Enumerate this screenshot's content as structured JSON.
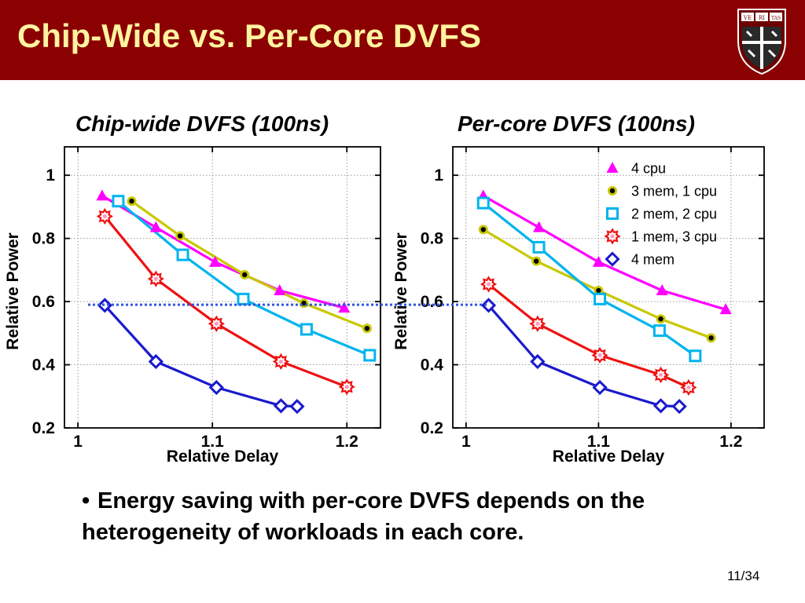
{
  "slide": {
    "title": "Chip-Wide vs. Per-Core DVFS",
    "bullet": "Energy saving with per-core DVFS depends on the heterogeneity of workloads in each core.",
    "page_number": "11/34",
    "logo_letters": [
      "VE",
      "RI",
      "TAS"
    ]
  },
  "colors": {
    "title_bar": "#8b0000",
    "title_text": "#fff3a0",
    "4 cpu": "#ff00ff",
    "3 mem, 1 cpu": "#c8c800",
    "2 mem, 2 cpu": "#00b4ee",
    "1 mem, 3 cpu": "#ee1111",
    "4 mem": "#1a1acc",
    "reference_line": "#3355dd"
  },
  "chart_data": [
    {
      "type": "line",
      "title": "Chip-wide DVFS (100ns)",
      "xlabel": "Relative Delay",
      "ylabel": "Relative Power",
      "xlim": [
        0.99,
        1.225
      ],
      "ylim": [
        0.2,
        1.09
      ],
      "xticks": [
        "1",
        "1.1",
        "1.2"
      ],
      "yticks": [
        "0.2",
        "0.4",
        "0.6",
        "0.8",
        "1"
      ],
      "grid": true,
      "series": [
        {
          "name": "4 cpu",
          "marker": "triangle",
          "x": [
            1.018,
            1.058,
            1.102,
            1.15,
            1.198
          ],
          "y": [
            0.935,
            0.835,
            0.725,
            0.635,
            0.58
          ]
        },
        {
          "name": "3 mem, 1 cpu",
          "marker": "dot",
          "x": [
            1.04,
            1.076,
            1.124,
            1.168,
            1.215
          ],
          "y": [
            0.918,
            0.808,
            0.685,
            0.595,
            0.515
          ]
        },
        {
          "name": "2 mem, 2 cpu",
          "marker": "square",
          "x": [
            1.03,
            1.078,
            1.123,
            1.17,
            1.217
          ],
          "y": [
            0.918,
            0.748,
            0.608,
            0.512,
            0.43
          ]
        },
        {
          "name": "1 mem, 3 cpu",
          "marker": "star",
          "x": [
            1.02,
            1.058,
            1.103,
            1.151,
            1.2
          ],
          "y": [
            0.87,
            0.672,
            0.53,
            0.41,
            0.33
          ]
        },
        {
          "name": "4 mem",
          "marker": "diamond",
          "x": [
            1.02,
            1.058,
            1.103,
            1.151,
            1.163
          ],
          "y": [
            0.588,
            0.41,
            0.328,
            0.27,
            0.268
          ]
        }
      ]
    },
    {
      "type": "line",
      "title": "Per-core DVFS (100ns)",
      "xlabel": "Relative Delay",
      "ylabel": "Relative Power",
      "xlim": [
        0.99,
        1.225
      ],
      "ylim": [
        0.2,
        1.09
      ],
      "xticks": [
        "1",
        "1.1",
        "1.2"
      ],
      "yticks": [
        "0.2",
        "0.4",
        "0.6",
        "0.8",
        "1"
      ],
      "grid": true,
      "legend": "top-right",
      "series": [
        {
          "name": "4 cpu",
          "marker": "triangle",
          "x": [
            1.013,
            1.055,
            1.1,
            1.148,
            1.196
          ],
          "y": [
            0.935,
            0.835,
            0.725,
            0.635,
            0.575
          ]
        },
        {
          "name": "3 mem, 1 cpu",
          "marker": "dot",
          "x": [
            1.013,
            1.053,
            1.1,
            1.147,
            1.185
          ],
          "y": [
            0.828,
            0.728,
            0.635,
            0.545,
            0.485
          ]
        },
        {
          "name": "2 mem, 2 cpu",
          "marker": "square",
          "x": [
            1.013,
            1.055,
            1.101,
            1.146,
            1.173
          ],
          "y": [
            0.912,
            0.772,
            0.608,
            0.508,
            0.428
          ]
        },
        {
          "name": "1 mem, 3 cpu",
          "marker": "star",
          "x": [
            1.017,
            1.054,
            1.101,
            1.147,
            1.168
          ],
          "y": [
            0.655,
            0.53,
            0.43,
            0.368,
            0.328
          ]
        },
        {
          "name": "4 mem",
          "marker": "diamond",
          "x": [
            1.017,
            1.054,
            1.101,
            1.147,
            1.161
          ],
          "y": [
            0.588,
            0.41,
            0.328,
            0.27,
            0.268
          ]
        }
      ]
    }
  ],
  "reference_line_y": 0.59
}
